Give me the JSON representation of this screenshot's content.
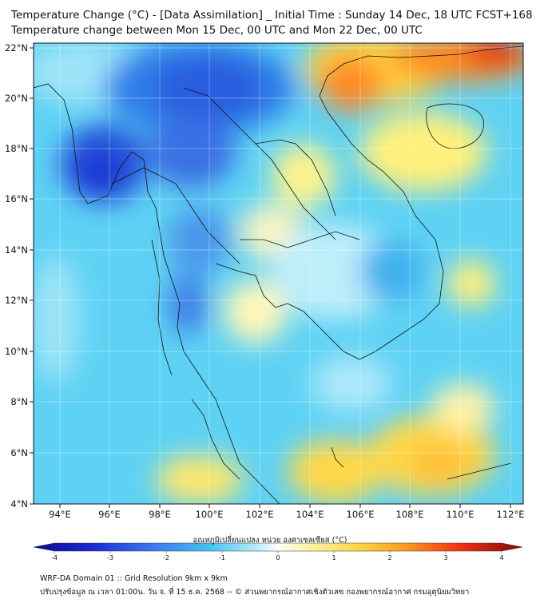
{
  "title": {
    "line1": "Temperature Change (°C) - [Data Assimilation] _ Initial Time : Sunday 14 Dec, 18 UTC FCST+168",
    "line2": "Temperature change between Mon 15 Dec, 00 UTC and Mon 22 Dec, 00 UTC"
  },
  "map": {
    "lon_range": [
      93,
      112.5
    ],
    "lat_range": [
      4,
      22.2
    ],
    "lon_ticks": [
      "94°E",
      "96°E",
      "98°E",
      "100°E",
      "102°E",
      "104°E",
      "106°E",
      "108°E",
      "110°E",
      "112°E"
    ],
    "lat_ticks": [
      "22°N",
      "20°N",
      "18°N",
      "16°N",
      "14°N",
      "12°N",
      "10°N",
      "8°N",
      "6°N",
      "4°N"
    ],
    "grid": "on"
  },
  "colorbar": {
    "title": "อุณหภูมิเปลี่ยนแปลง หน่วย องศาเซลเซียส (°C)",
    "ticks": [
      "-4",
      "-3",
      "-2",
      "-1",
      "0",
      "1",
      "2",
      "3",
      "4"
    ],
    "range": [
      -4,
      4
    ]
  },
  "footer": {
    "line1": "WRF-DA Domain 01 :: Grid Resolution 9km x 9km",
    "line2": "ปรับปรุงข้อมูล ณ เวลา 01:00น. วัน จ. ที่ 15 ธ.ค. 2568 -- © ส่วนพยากรณ์อากาศเชิงตัวเลข กองพยากรณ์อากาศ กรมอุตุนิยมวิทยา"
  }
}
